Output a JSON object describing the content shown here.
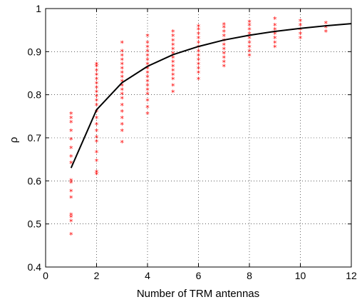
{
  "chart_data": {
    "type": "scatter",
    "xlabel": "Number of TRM antennas",
    "ylabel": "ρ",
    "xlim": [
      0,
      12
    ],
    "ylim": [
      0.4,
      1.0
    ],
    "xticks": [
      0,
      2,
      4,
      6,
      8,
      10,
      12
    ],
    "yticks": [
      0.4,
      0.5,
      0.6,
      0.7,
      0.8,
      0.9,
      1.0
    ],
    "xtick_labels": [
      "0",
      "2",
      "4",
      "6",
      "8",
      "10",
      "12"
    ],
    "ytick_labels": [
      "0.4",
      "0.5",
      "0.6",
      "0.7",
      "0.8",
      "0.9",
      "1"
    ],
    "grid": true,
    "marker_color": "#ff0000",
    "line_color": "#000000",
    "scatter_series": [
      {
        "x": 1,
        "y": [
          0.475,
          0.505,
          0.515,
          0.52,
          0.56,
          0.575,
          0.595,
          0.6,
          0.64,
          0.655,
          0.675,
          0.695,
          0.715,
          0.735,
          0.745,
          0.755
        ]
      },
      {
        "x": 2,
        "y": [
          0.615,
          0.62,
          0.645,
          0.665,
          0.69,
          0.7,
          0.715,
          0.73,
          0.745,
          0.76,
          0.775,
          0.785,
          0.795,
          0.805,
          0.815,
          0.825,
          0.835,
          0.845,
          0.855,
          0.865,
          0.87
        ]
      },
      {
        "x": 3,
        "y": [
          0.688,
          0.715,
          0.73,
          0.745,
          0.76,
          0.775,
          0.79,
          0.8,
          0.81,
          0.82,
          0.83,
          0.84,
          0.85,
          0.86,
          0.87,
          0.88,
          0.89,
          0.9,
          0.92
        ]
      },
      {
        "x": 4,
        "y": [
          0.755,
          0.77,
          0.785,
          0.8,
          0.81,
          0.82,
          0.83,
          0.84,
          0.85,
          0.86,
          0.87,
          0.88,
          0.89,
          0.9,
          0.91,
          0.92,
          0.935
        ]
      },
      {
        "x": 5,
        "y": [
          0.805,
          0.82,
          0.835,
          0.845,
          0.855,
          0.865,
          0.875,
          0.885,
          0.895,
          0.905,
          0.915,
          0.925,
          0.935,
          0.945
        ]
      },
      {
        "x": 6,
        "y": [
          0.835,
          0.85,
          0.86,
          0.87,
          0.88,
          0.89,
          0.9,
          0.91,
          0.92,
          0.93,
          0.94,
          0.95,
          0.958
        ]
      },
      {
        "x": 7,
        "y": [
          0.865,
          0.875,
          0.885,
          0.895,
          0.905,
          0.915,
          0.925,
          0.935,
          0.945,
          0.955,
          0.962
        ]
      },
      {
        "x": 8,
        "y": [
          0.89,
          0.9,
          0.91,
          0.92,
          0.93,
          0.94,
          0.95,
          0.96,
          0.968
        ]
      },
      {
        "x": 9,
        "y": [
          0.91,
          0.92,
          0.93,
          0.94,
          0.95,
          0.96,
          0.975
        ]
      },
      {
        "x": 10,
        "y": [
          0.93,
          0.94,
          0.95,
          0.96,
          0.97
        ]
      },
      {
        "x": 11,
        "y": [
          0.945,
          0.955,
          0.965
        ]
      }
    ],
    "line_series": {
      "x": [
        1,
        2,
        3,
        4,
        5,
        6,
        7,
        8,
        9,
        10,
        11,
        12
      ],
      "y": [
        0.63,
        0.765,
        0.828,
        0.866,
        0.893,
        0.912,
        0.927,
        0.938,
        0.947,
        0.954,
        0.96,
        0.965
      ]
    }
  }
}
